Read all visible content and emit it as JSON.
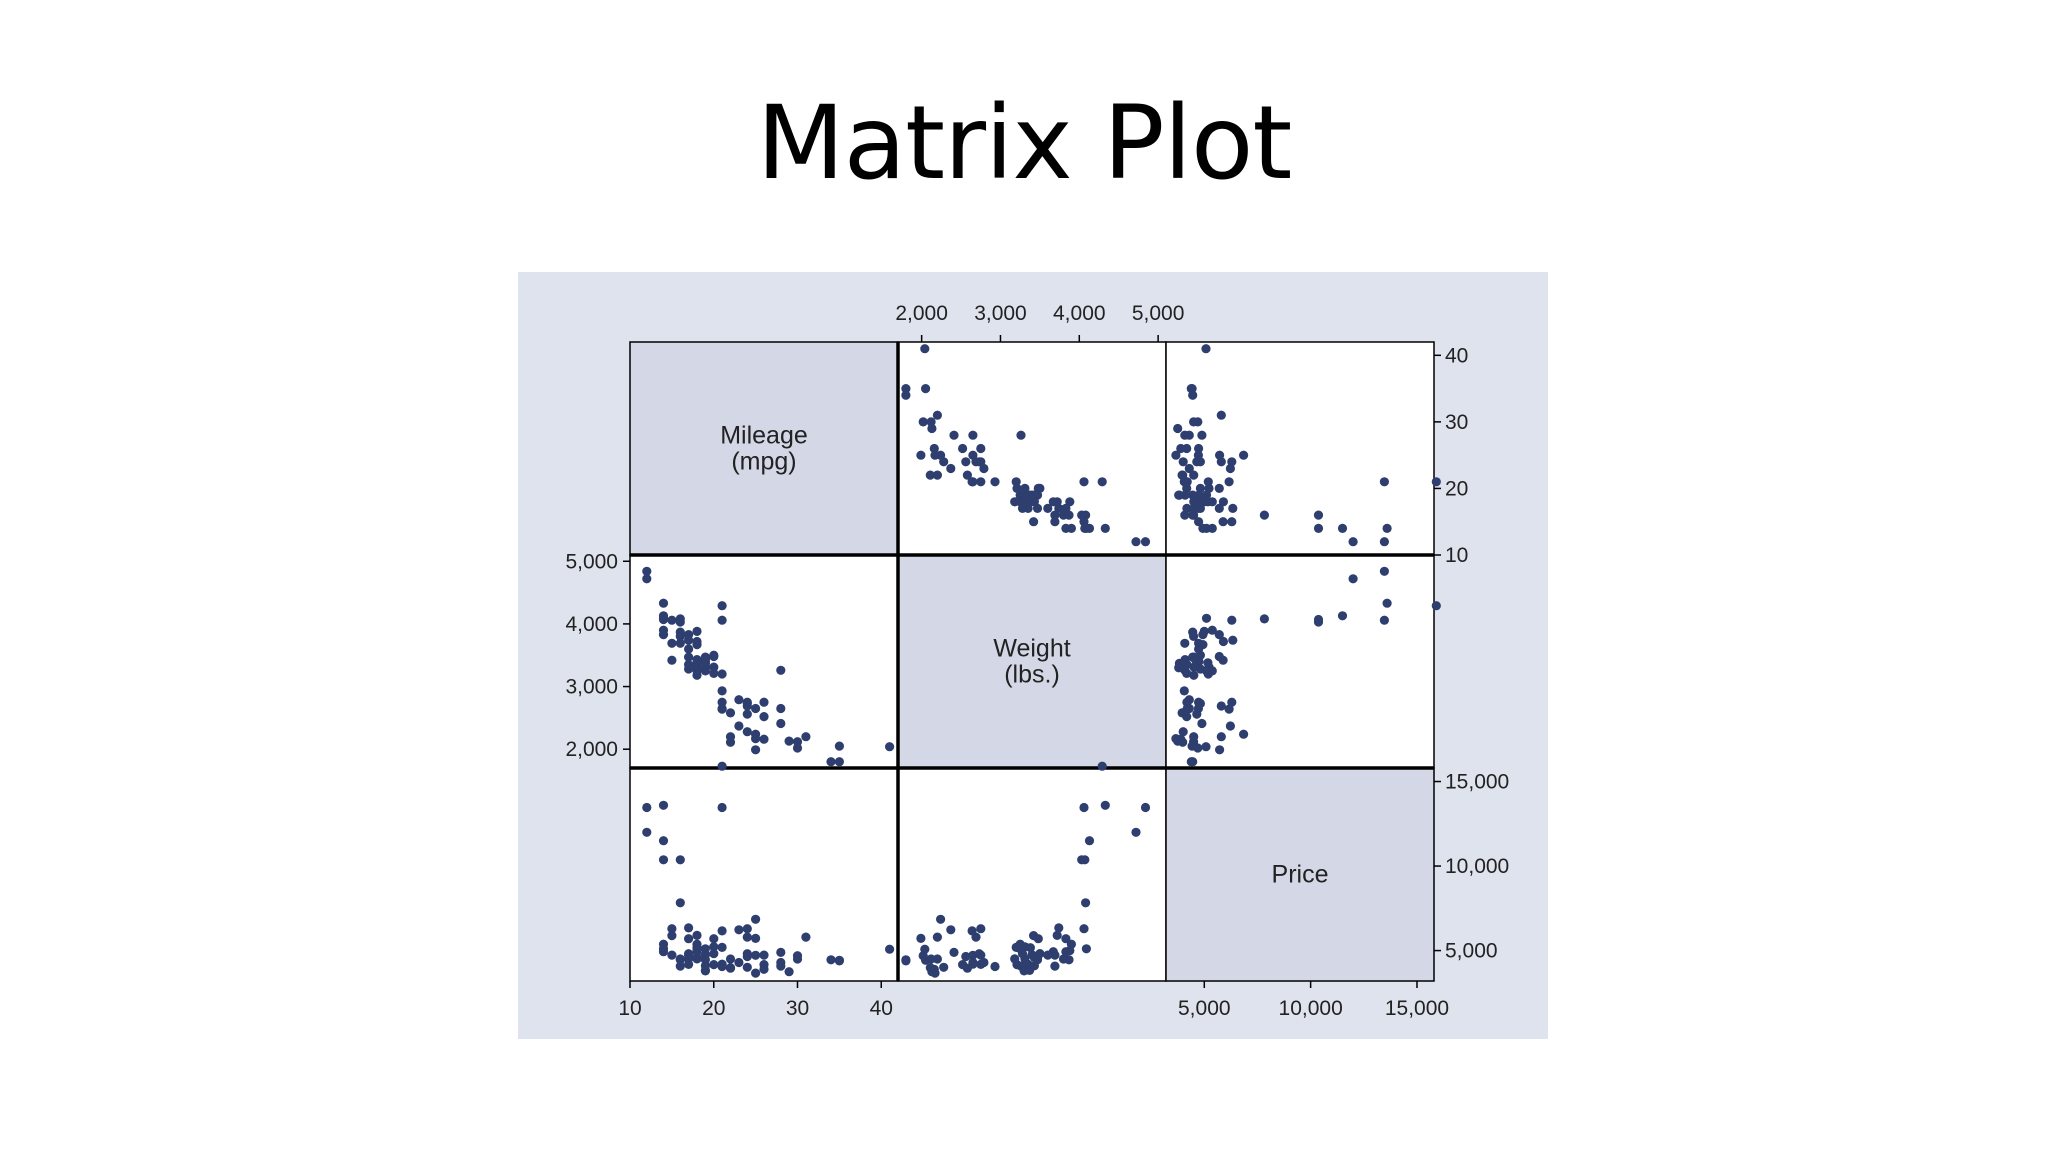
{
  "slide": {
    "title": "Matrix Plot"
  },
  "colors": {
    "panel_background": "#dfe3ee",
    "diagonal_fill": "#d4d8e6",
    "marker": "#2e3e6e",
    "cell_background": "#ffffff",
    "frame": "#000000"
  },
  "chart_data": {
    "type": "scatter",
    "kind": "scatter-matrix",
    "title": "",
    "variables": [
      {
        "key": "mpg",
        "label_lines": [
          "Mileage",
          "(mpg)"
        ],
        "range": [
          10,
          42
        ]
      },
      {
        "key": "weight",
        "label_lines": [
          "Weight",
          "(lbs.)"
        ],
        "range": [
          1700,
          5100
        ]
      },
      {
        "key": "price",
        "label_lines": [
          "Price"
        ],
        "range": [
          3200,
          15800
        ]
      }
    ],
    "axes": {
      "top": {
        "variable": "weight",
        "ticks": [
          2000,
          3000,
          4000,
          5000
        ],
        "labels": [
          "2,000",
          "3,000",
          "4,000",
          "5,000"
        ]
      },
      "right": [
        {
          "variable": "mpg",
          "ticks": [
            40,
            30,
            20,
            10
          ],
          "labels": [
            "40",
            "30",
            "20",
            "10"
          ]
        },
        {
          "variable": "price",
          "ticks": [
            15000,
            10000,
            5000
          ],
          "labels": [
            "15,000",
            "10,000",
            "5,000"
          ]
        }
      ],
      "left": {
        "variable": "weight",
        "ticks": [
          5000,
          4000,
          3000,
          2000
        ],
        "labels": [
          "5,000",
          "4,000",
          "3,000",
          "2,000"
        ]
      },
      "bottom": [
        {
          "variable": "mpg",
          "ticks": [
            10,
            20,
            30,
            40
          ],
          "labels": [
            "10",
            "20",
            "30",
            "40"
          ]
        },
        {
          "variable": "price",
          "ticks": [
            5000,
            10000,
            15000
          ],
          "labels": [
            "5,000",
            "10,000",
            "15,000"
          ]
        }
      ]
    },
    "grid": false,
    "legend": "none",
    "points": [
      [
        41,
        2040,
        5079
      ],
      [
        35,
        2050,
        4425
      ],
      [
        35,
        1800,
        4389
      ],
      [
        34,
        1800,
        4453
      ],
      [
        31,
        2200,
        5799
      ],
      [
        30,
        2120,
        4499
      ],
      [
        30,
        2020,
        4697
      ],
      [
        29,
        2130,
        3748
      ],
      [
        28,
        2650,
        4296
      ],
      [
        28,
        2410,
        4890
      ],
      [
        28,
        3260,
        4082
      ],
      [
        26,
        2160,
        3895
      ],
      [
        26,
        2520,
        4172
      ],
      [
        26,
        2750,
        4733
      ],
      [
        25,
        1990,
        5719
      ],
      [
        25,
        2240,
        6850
      ],
      [
        25,
        2650,
        4723
      ],
      [
        25,
        2170,
        3667
      ],
      [
        24,
        2750,
        6295
      ],
      [
        24,
        2280,
        4010
      ],
      [
        24,
        2560,
        4647
      ],
      [
        24,
        2730,
        4816
      ],
      [
        24,
        2690,
        5798
      ],
      [
        23,
        2370,
        6229
      ],
      [
        23,
        2790,
        4296
      ],
      [
        22,
        2580,
        3955
      ],
      [
        22,
        2110,
        3984
      ],
      [
        22,
        2200,
        4504
      ],
      [
        21,
        3200,
        5189
      ],
      [
        21,
        2750,
        4181
      ],
      [
        21,
        2650,
        4195
      ],
      [
        21,
        2930,
        4060
      ],
      [
        21,
        2640,
        6165
      ],
      [
        21,
        4290,
        15906
      ],
      [
        21,
        4060,
        13466
      ],
      [
        20,
        3310,
        5222
      ],
      [
        20,
        3500,
        4819
      ],
      [
        20,
        3480,
        5705
      ],
      [
        20,
        3210,
        4172
      ],
      [
        19,
        3250,
        5104
      ],
      [
        19,
        3400,
        4749
      ],
      [
        19,
        3370,
        3829
      ],
      [
        19,
        3300,
        3799
      ],
      [
        19,
        3470,
        4457
      ],
      [
        19,
        3430,
        4098
      ],
      [
        18,
        3250,
        5379
      ],
      [
        18,
        3180,
        4509
      ],
      [
        18,
        3720,
        5899
      ],
      [
        18,
        3670,
        4934
      ],
      [
        18,
        3430,
        4589
      ],
      [
        18,
        3310,
        4516
      ],
      [
        18,
        3380,
        5172
      ],
      [
        18,
        3880,
        4999
      ],
      [
        17,
        3830,
        5705
      ],
      [
        17,
        3740,
        6342
      ],
      [
        17,
        3600,
        4733
      ],
      [
        17,
        3470,
        4516
      ],
      [
        17,
        3350,
        4184
      ],
      [
        17,
        3280,
        4816
      ],
      [
        16,
        3800,
        4499
      ],
      [
        16,
        3690,
        4082
      ],
      [
        16,
        4080,
        7827
      ],
      [
        16,
        4030,
        10372
      ],
      [
        16,
        3870,
        4453
      ],
      [
        15,
        4060,
        6295
      ],
      [
        15,
        3690,
        4733
      ],
      [
        15,
        3420,
        5886
      ],
      [
        14,
        4130,
        11497
      ],
      [
        14,
        4330,
        13594
      ],
      [
        14,
        4090,
        5104
      ],
      [
        14,
        3900,
        5379
      ],
      [
        14,
        4070,
        10371
      ],
      [
        14,
        3830,
        4934
      ],
      [
        12,
        4720,
        11995
      ],
      [
        12,
        4840,
        13466
      ]
    ]
  }
}
